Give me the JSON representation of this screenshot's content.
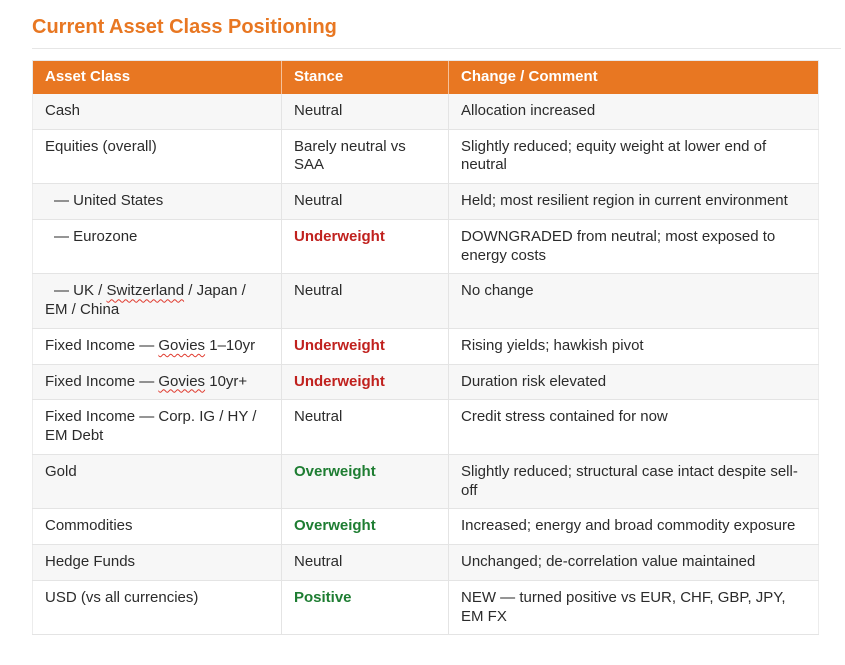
{
  "page": {
    "title": "Current Asset Class Positioning"
  },
  "colors": {
    "accent_orange": "#E87722",
    "negative_red": "#C0211E",
    "positive_green": "#1E7D32",
    "stripe_gray": "#F7F7F7",
    "squiggle_red": "#E03A2E",
    "text_dark": "#2B2B2B",
    "header_text": "#FFFFFF"
  },
  "table": {
    "columns": [
      {
        "label": "Asset Class"
      },
      {
        "label": "Stance"
      },
      {
        "label": "Change / Comment"
      }
    ],
    "spellcheck_words": [
      "Switzerland",
      "Govies"
    ],
    "rows": [
      {
        "asset": "Cash",
        "indent": false,
        "stance": "Neutral",
        "stance_style": "plain",
        "comment": "Allocation increased"
      },
      {
        "asset": "Equities (overall)",
        "indent": false,
        "stance": "Barely neutral vs SAA",
        "stance_style": "plain",
        "comment": "Slightly reduced; equity weight at lower end of neutral"
      },
      {
        "asset": "— United States",
        "indent": true,
        "stance": "Neutral",
        "stance_style": "plain",
        "comment": "Held; most resilient region in current environment"
      },
      {
        "asset": "— Eurozone",
        "indent": true,
        "stance": "Underweight",
        "stance_style": "negative",
        "comment": "DOWNGRADED from neutral; most exposed to energy costs"
      },
      {
        "asset": "— UK / Switzerland / Japan / EM / China",
        "indent": true,
        "stance": "Neutral",
        "stance_style": "plain",
        "comment": "No change"
      },
      {
        "asset": "Fixed Income — Govies 1–10yr",
        "indent": false,
        "stance": "Underweight",
        "stance_style": "negative",
        "comment": "Rising yields; hawkish pivot"
      },
      {
        "asset": "Fixed Income — Govies 10yr+",
        "indent": false,
        "stance": "Underweight",
        "stance_style": "negative",
        "comment": "Duration risk elevated"
      },
      {
        "asset": "Fixed Income — Corp. IG / HY / EM Debt",
        "indent": false,
        "stance": "Neutral",
        "stance_style": "plain",
        "comment": "Credit stress contained for now"
      },
      {
        "asset": "Gold",
        "indent": false,
        "stance": "Overweight",
        "stance_style": "positive",
        "comment": "Slightly reduced; structural case intact despite sell-off"
      },
      {
        "asset": "Commodities",
        "indent": false,
        "stance": "Overweight",
        "stance_style": "positive",
        "comment": "Increased; energy and broad commodity exposure"
      },
      {
        "asset": "Hedge Funds",
        "indent": false,
        "stance": "Neutral",
        "stance_style": "plain",
        "comment": "Unchanged; de-correlation value maintained"
      },
      {
        "asset": "USD (vs all currencies)",
        "indent": false,
        "stance": "Positive",
        "stance_style": "positive",
        "comment": "NEW — turned positive vs EUR, CHF, GBP, JPY, EM FX"
      }
    ]
  }
}
